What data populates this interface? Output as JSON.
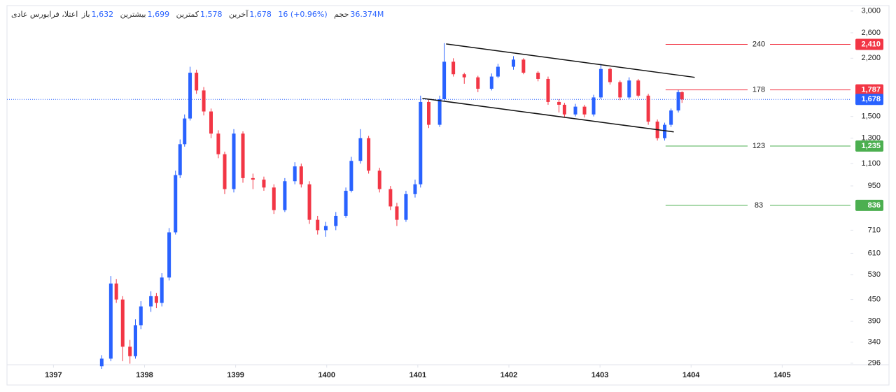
{
  "header": {
    "symbol": "اعتلا، فرابورس عادی",
    "stats": [
      {
        "label": "باز",
        "value": "1,632"
      },
      {
        "label": "بیشترین",
        "value": "1,699"
      },
      {
        "label": "کمترین",
        "value": "1,578"
      },
      {
        "label": "آخرین",
        "value": "1,678"
      }
    ],
    "change": "16 (+0.96%)",
    "volume_label": "حجم",
    "volume": "36.374M"
  },
  "chart_data": {
    "type": "candlestick",
    "log_scale": true,
    "up_color": "#2962ff",
    "down_color": "#f23645",
    "xlim": [
      1396.49,
      1405.75
    ],
    "xticks": [
      1397,
      1398,
      1399,
      1400,
      1401,
      1402,
      1403,
      1404,
      1405
    ],
    "ylim": [
      293,
      3110
    ],
    "yticks": [
      296,
      340,
      390,
      450,
      530,
      610,
      710,
      950,
      {
        "value": 1100,
        "label": "1,100"
      },
      {
        "value": 1300,
        "label": "1,300"
      },
      {
        "value": 1500,
        "label": "1,500"
      },
      {
        "value": 2200,
        "label": "2,200"
      },
      {
        "value": 2600,
        "label": "2,600"
      },
      {
        "value": 3000,
        "label": "3,000"
      }
    ],
    "x": [
      1397.53,
      1397.63,
      1397.69,
      1397.76,
      1397.84,
      1397.9,
      1397.96,
      1398.07,
      1398.13,
      1398.19,
      1398.27,
      1398.34,
      1398.39,
      1398.44,
      1398.5,
      1398.57,
      1398.65,
      1398.73,
      1398.81,
      1398.88,
      1398.98,
      1399.08,
      1399.19,
      1399.31,
      1399.42,
      1399.54,
      1399.65,
      1399.72,
      1399.81,
      1399.9,
      1399.99,
      1400.1,
      1400.21,
      1400.27,
      1400.37,
      1400.46,
      1400.58,
      1400.7,
      1400.77,
      1400.87,
      1400.97,
      1401.03,
      1401.12,
      1401.24,
      1401.29,
      1401.39,
      1401.51,
      1401.66,
      1401.81,
      1401.88,
      1402.05,
      1402.16,
      1402.32,
      1402.43,
      1402.55,
      1402.61,
      1402.73,
      1402.83,
      1402.93,
      1403.01,
      1403.11,
      1403.22,
      1403.32,
      1403.42,
      1403.53,
      1403.63,
      1403.71,
      1403.78,
      1403.86,
      1403.9
    ],
    "open": [
      290,
      305,
      500,
      450,
      330,
      310,
      380,
      430,
      460,
      440,
      520,
      700,
      1020,
      1250,
      1480,
      2000,
      1780,
      1550,
      1340,
      1170,
      930,
      1340,
      1000,
      990,
      940,
      810,
      980,
      1080,
      960,
      760,
      710,
      730,
      780,
      920,
      1120,
      1300,
      1050,
      930,
      830,
      760,
      900,
      960,
      1650,
      1420,
      1680,
      2150,
      1980,
      1940,
      1800,
      1950,
      2080,
      2180,
      2000,
      1920,
      1650,
      1620,
      1520,
      1600,
      1520,
      1700,
      2050,
      1880,
      1700,
      1900,
      1720,
      1450,
      1300,
      1420,
      1560,
      1760
    ],
    "high": [
      312,
      525,
      515,
      460,
      345,
      395,
      445,
      475,
      470,
      535,
      720,
      1050,
      1290,
      1520,
      2080,
      2040,
      1820,
      1580,
      1370,
      1190,
      1380,
      1360,
      1030,
      1010,
      960,
      1000,
      1110,
      1100,
      980,
      780,
      750,
      800,
      940,
      1150,
      1380,
      1320,
      1070,
      950,
      850,
      920,
      990,
      1720,
      1680,
      1720,
      2430,
      2200,
      2000,
      1960,
      1990,
      2120,
      2230,
      2200,
      2020,
      1950,
      1680,
      1640,
      1630,
      1620,
      1730,
      2120,
      2070,
      1900,
      1940,
      1920,
      1740,
      1470,
      1440,
      1580,
      1790,
      1770
    ],
    "low": [
      285,
      300,
      440,
      300,
      295,
      305,
      370,
      415,
      425,
      430,
      510,
      690,
      1000,
      1230,
      1460,
      1740,
      1510,
      1300,
      1140,
      900,
      910,
      970,
      930,
      920,
      790,
      800,
      960,
      940,
      740,
      690,
      680,
      710,
      770,
      910,
      1100,
      1030,
      910,
      810,
      730,
      750,
      880,
      940,
      1390,
      1400,
      1660,
      1950,
      1860,
      1760,
      1780,
      1930,
      2040,
      1980,
      1890,
      1620,
      1540,
      1490,
      1500,
      1490,
      1500,
      1680,
      1850,
      1670,
      1680,
      1700,
      1420,
      1280,
      1280,
      1400,
      1540,
      1640
    ],
    "close": [
      305,
      500,
      450,
      330,
      310,
      380,
      430,
      460,
      440,
      520,
      700,
      1020,
      1250,
      1480,
      2000,
      1780,
      1550,
      1340,
      1170,
      930,
      1340,
      1000,
      990,
      940,
      810,
      980,
      1080,
      960,
      760,
      710,
      730,
      780,
      920,
      1120,
      1300,
      1050,
      930,
      830,
      760,
      900,
      960,
      1650,
      1420,
      1680,
      2150,
      1980,
      1940,
      1800,
      1950,
      2080,
      2180,
      2000,
      1920,
      1650,
      1620,
      1520,
      1600,
      1520,
      1700,
      2050,
      1880,
      1700,
      1900,
      1720,
      1450,
      1300,
      1420,
      1560,
      1760,
      1678
    ],
    "trendlines": [
      {
        "x": [
          1401.31,
          1404.04
        ],
        "y": [
          2417,
          1940
        ]
      },
      {
        "x": [
          1401.05,
          1403.81
        ],
        "y": [
          1690,
          1355
        ]
      }
    ],
    "levels": [
      {
        "value": 2410,
        "label": "2,410",
        "note": 240,
        "color": "#f23645"
      },
      {
        "value": 1787,
        "label": "1,787",
        "note": 178,
        "color": "#f23645"
      },
      {
        "value": 1235,
        "label": "1,235",
        "note": 123,
        "color": "#4caf50"
      },
      {
        "value": 836,
        "label": "836",
        "note": 83,
        "color": "#4caf50"
      }
    ],
    "level_start": 1403.72,
    "last": {
      "value": 1678,
      "label": "1,678",
      "color": "#2962ff"
    }
  }
}
